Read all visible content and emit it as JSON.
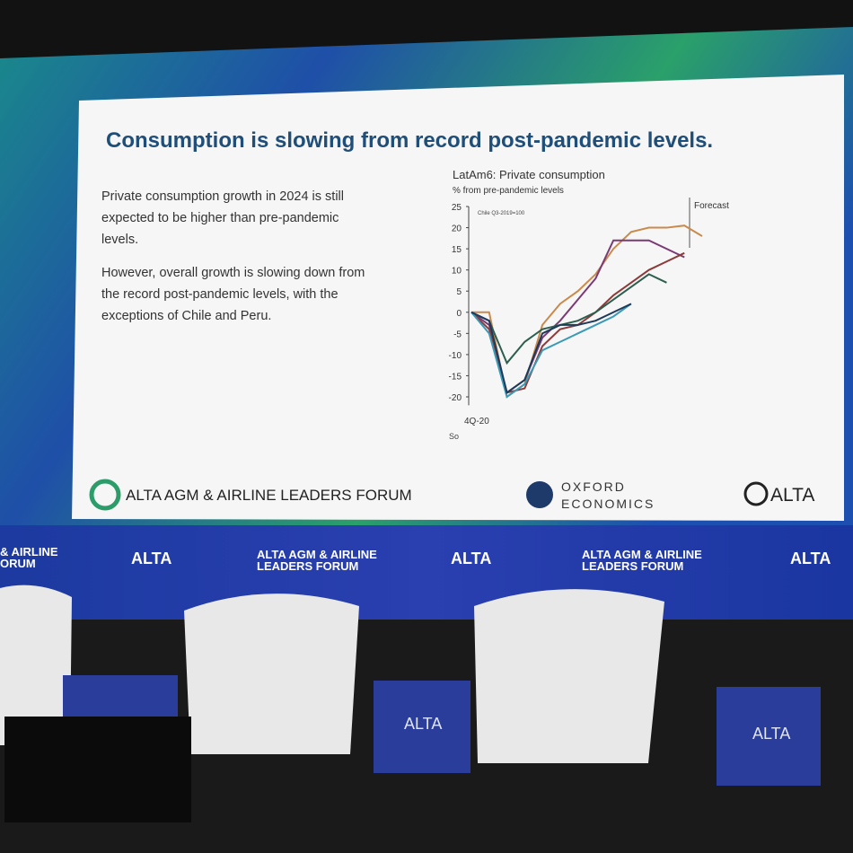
{
  "slide": {
    "title": "Consumption is slowing from record post-pandemic levels.",
    "paragraphs": [
      "Private consumption growth in 2024 is still expected to be higher than pre-pandemic levels.",
      "However, overall growth is slowing down from the record post-pandemic levels, with the exceptions of Chile and Peru."
    ],
    "footer": {
      "forum": "ALTA AGM & AIRLINE LEADERS FORUM",
      "oxford": [
        "OXFORD",
        "ECONOMICS"
      ],
      "alta": "ALTA"
    }
  },
  "banner": {
    "cut": [
      "& AIRLINE",
      "ORUM"
    ],
    "alta": "ALTA",
    "forum": [
      "ALTA AGM & AIRLINE",
      "LEADERS FORUM"
    ]
  },
  "boxes": {
    "alta": "ALTA"
  },
  "chart_data": {
    "type": "line",
    "title": "LatAm6: Private consumption",
    "subtitle": "% from pre-pandemic levels",
    "annotations": [
      "Chile Q3-2019=100",
      "Forecast"
    ],
    "source": "So",
    "categories": [
      "4Q-20",
      null,
      null,
      null,
      null,
      null,
      null,
      null,
      null,
      null,
      null,
      null,
      null,
      null
    ],
    "series": [
      {
        "color": "#c98a4c",
        "values": [
          0,
          0,
          -20,
          -17,
          -3,
          2,
          5,
          9,
          15,
          19,
          20,
          20,
          20.5,
          18
        ]
      },
      {
        "color": "#7a3a73",
        "values": [
          0,
          -3,
          -19,
          -16,
          -6,
          -2,
          3,
          8,
          17,
          17,
          17,
          15,
          13,
          null
        ]
      },
      {
        "color": "#8c3a3a",
        "values": [
          0,
          -4,
          -19,
          -18,
          -8,
          -4,
          -3,
          0,
          4,
          7,
          10,
          12,
          14,
          null
        ]
      },
      {
        "color": "#2e5e4e",
        "values": [
          0,
          -2,
          -12,
          -7,
          -4,
          -3,
          -2,
          0,
          3,
          6,
          9,
          7,
          null,
          null
        ]
      },
      {
        "color": "#3a9ab8",
        "values": [
          0,
          -5,
          -20,
          -17,
          -9,
          -7,
          -5,
          -3,
          -1,
          2,
          null,
          null,
          null,
          null
        ]
      },
      {
        "color": "#1e3a5a",
        "values": [
          0,
          -2,
          -19,
          -16,
          -5,
          -3,
          -3,
          -2,
          0,
          2,
          null,
          null,
          null,
          null
        ]
      }
    ],
    "ylim": [
      -22,
      25
    ],
    "yticks": [
      25,
      20,
      15,
      10,
      5,
      0,
      -5,
      -10,
      -15,
      -20
    ]
  }
}
